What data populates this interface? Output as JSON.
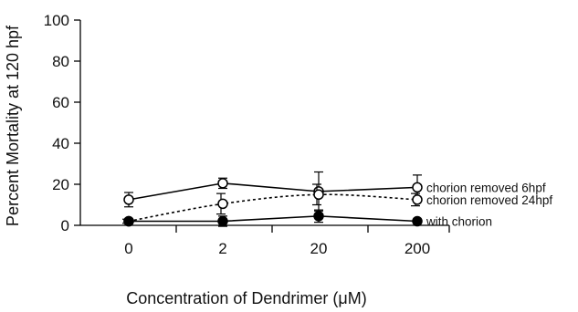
{
  "chart_data": {
    "type": "line",
    "title": "",
    "xlabel": "Concentration of Dendrimer (μM)",
    "ylabel": "Percent Mortality at  120 hpf",
    "categories": [
      "0",
      "2",
      "20",
      "200"
    ],
    "ylim": [
      0,
      100
    ],
    "yticks": [
      "0",
      "20",
      "40",
      "60",
      "80",
      "100"
    ],
    "grid": false,
    "legend": "inline-right",
    "series": [
      {
        "name": "chorion removed 6hpf",
        "values": [
          12.5,
          20.5,
          16.5,
          18.5
        ],
        "errors": [
          3.5,
          2.5,
          9.5,
          6
        ],
        "marker": "open-circle",
        "line": "solid",
        "color": "#000000"
      },
      {
        "name": "chorion removed 24hpf",
        "values": [
          2,
          10.5,
          15,
          12.5
        ],
        "errors": [
          1,
          5,
          5,
          3
        ],
        "marker": "open-circle",
        "line": "dotted",
        "color": "#000000"
      },
      {
        "name": "with chorion",
        "values": [
          2,
          2,
          4.5,
          2
        ],
        "errors": [
          1,
          2.5,
          3,
          1
        ],
        "marker": "filled-circle",
        "line": "solid",
        "color": "#000000"
      }
    ]
  }
}
